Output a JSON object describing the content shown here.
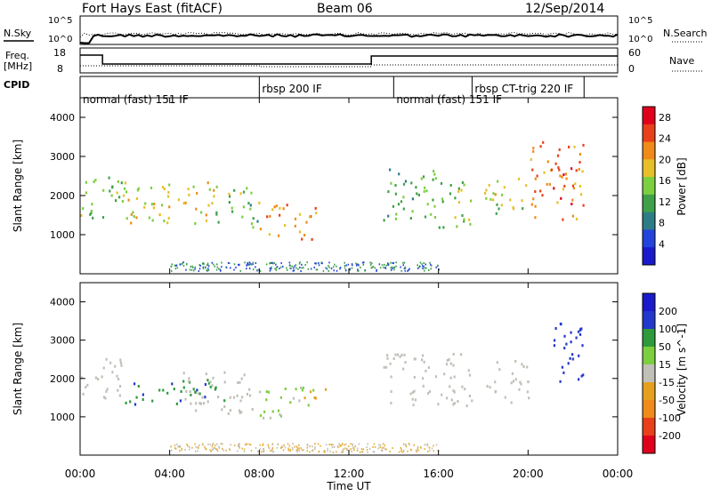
{
  "header": {
    "station": "Fort Hays East (fitACF)",
    "beam": "Beam 06",
    "date": "12/Sep/2014"
  },
  "noise_panel": {
    "left_label": "N.Sky",
    "right_label": "N.Search",
    "left_ticks": [
      "10^5",
      "10^0"
    ],
    "right_ticks": [
      "10^5",
      "10^0"
    ]
  },
  "freq_panel": {
    "left_label_1": "Freq.",
    "left_label_2": "[MHz]",
    "left_ticks": [
      "18",
      "8"
    ],
    "right_label": "Nave",
    "right_ticks": [
      "60",
      "0"
    ]
  },
  "cpid_panel": {
    "label": "CPID",
    "modes": [
      {
        "start_h": 0.0,
        "label": "normal (fast) 151 IF"
      },
      {
        "start_h": 8.0,
        "label": "rbsp 200 IF"
      },
      {
        "start_h": 14.0,
        "label": "normal (fast) 151 IF"
      },
      {
        "start_h": 17.5,
        "label": "rbsp CT-trig 220 IF"
      },
      {
        "start_h": 22.5,
        "label": ""
      }
    ]
  },
  "colors": {
    "power_scale": [
      "#1a1acc",
      "#2244dd",
      "#2e7d86",
      "#3fa04a",
      "#7ccf3f",
      "#e6c02a",
      "#f08a1a",
      "#e8401a",
      "#e0001c"
    ],
    "velocity_scale": [
      "#1a1acc",
      "#2238cc",
      "#2e9a3c",
      "#7ccf3f",
      "#c0c0b8",
      "#e6a020",
      "#f08a1a",
      "#e8401a",
      "#e0001c"
    ]
  },
  "chart_data": [
    {
      "type": "heatmap",
      "title": "",
      "xlabel": "Time UT",
      "ylabel": "Slant Range [km]",
      "xlim": [
        0,
        24
      ],
      "ylim": [
        0,
        4500
      ],
      "x_ticks": [
        "00:00",
        "04:00",
        "08:00",
        "12:00",
        "16:00",
        "20:00",
        "00:00"
      ],
      "y_ticks": [
        1000,
        2000,
        3000,
        4000
      ],
      "colorbar": {
        "label": "Power [dB]",
        "ticks": [
          4,
          8,
          12,
          16,
          20,
          24,
          28
        ],
        "range": [
          0,
          30
        ]
      },
      "echo_regions": [
        {
          "t0": 0.0,
          "t1": 2.0,
          "r0": 1400,
          "r1": 2600,
          "level": 14
        },
        {
          "t0": 2.0,
          "t1": 6.0,
          "r0": 1300,
          "r1": 2400,
          "level": 18
        },
        {
          "t0": 6.0,
          "t1": 8.0,
          "r0": 1200,
          "r1": 2300,
          "level": 14
        },
        {
          "t0": 8.0,
          "t1": 10.5,
          "r0": 900,
          "r1": 1800,
          "level": 22
        },
        {
          "t0": 13.5,
          "t1": 16.0,
          "r0": 1400,
          "r1": 2800,
          "level": 12
        },
        {
          "t0": 16.0,
          "t1": 17.5,
          "r0": 1200,
          "r1": 2500,
          "level": 16
        },
        {
          "t0": 18.0,
          "t1": 20.0,
          "r0": 1500,
          "r1": 2500,
          "level": 16
        },
        {
          "t0": 20.0,
          "t1": 22.5,
          "r0": 1400,
          "r1": 3400,
          "level": 24
        }
      ]
    },
    {
      "type": "heatmap",
      "title": "",
      "xlabel": "Time UT",
      "ylabel": "Slant Range [km]",
      "xlim": [
        0,
        24
      ],
      "ylim": [
        0,
        4500
      ],
      "x_ticks": [
        "00:00",
        "04:00",
        "08:00",
        "12:00",
        "16:00",
        "20:00",
        "00:00"
      ],
      "y_ticks": [
        1000,
        2000,
        3000,
        4000
      ],
      "colorbar": {
        "label": "Velocity [m s^-1]",
        "ticks": [
          200,
          100,
          50,
          15,
          -15,
          -50,
          -100,
          -200
        ],
        "range": [
          -250,
          250
        ]
      },
      "echo_regions": [
        {
          "t0": 0.0,
          "t1": 2.0,
          "r0": 1500,
          "r1": 2600,
          "level": 0
        },
        {
          "t0": 2.0,
          "t1": 6.5,
          "r0": 1300,
          "r1": 2000,
          "level": 150
        },
        {
          "t0": 4.5,
          "t1": 8.0,
          "r0": 1100,
          "r1": 2200,
          "level": 10
        },
        {
          "t0": 8.0,
          "t1": 10.5,
          "r0": 1000,
          "r1": 1800,
          "level": 40
        },
        {
          "t0": 9.5,
          "t1": 11.0,
          "r0": 1500,
          "r1": 1800,
          "level": -60
        },
        {
          "t0": 13.5,
          "t1": 17.5,
          "r0": 1300,
          "r1": 2700,
          "level": 0
        },
        {
          "t0": 18.0,
          "t1": 20.0,
          "r0": 1400,
          "r1": 2500,
          "level": 0
        },
        {
          "t0": 21.0,
          "t1": 22.5,
          "r0": 1800,
          "r1": 3500,
          "level": 200
        }
      ]
    }
  ]
}
